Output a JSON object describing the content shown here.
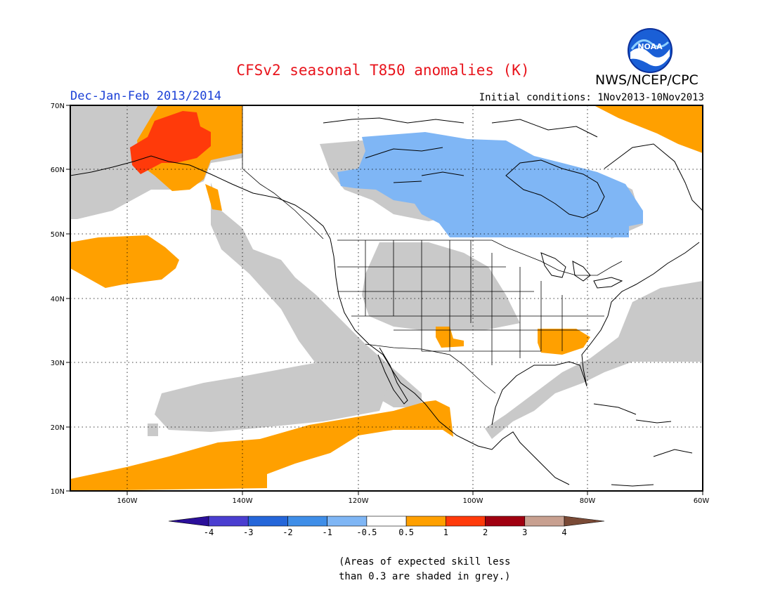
{
  "header": {
    "title": "CFSv2 seasonal T850 anomalies (K)",
    "season": "Dec-Jan-Feb 2013/2014",
    "initial_conditions": "Initial conditions: 1Nov2013-10Nov2013",
    "organization": "NWS/NCEP/CPC",
    "logo_text": "NOAA"
  },
  "map": {
    "lon_labels": [
      "160W",
      "140W",
      "120W",
      "100W",
      "80W",
      "60W"
    ],
    "lat_labels": [
      "70N",
      "60N",
      "50N",
      "40N",
      "30N",
      "20N",
      "10N"
    ]
  },
  "colorbar": {
    "labels": [
      "-4",
      "-3",
      "-2",
      "-1",
      "-0.5",
      "0.5",
      "1",
      "2",
      "3",
      "4"
    ],
    "colors": [
      "#2b0f9a",
      "#4a3ed0",
      "#2566d9",
      "#3f8ee8",
      "#7fb6f5",
      "#ffffff",
      "#ffa000",
      "#ff3a0a",
      "#a00010",
      "#c8a090",
      "#7a4a36"
    ]
  },
  "note": {
    "line1": "(Areas of expected skill less",
    "line2": "than 0.3 are shaded in grey.)"
  }
}
